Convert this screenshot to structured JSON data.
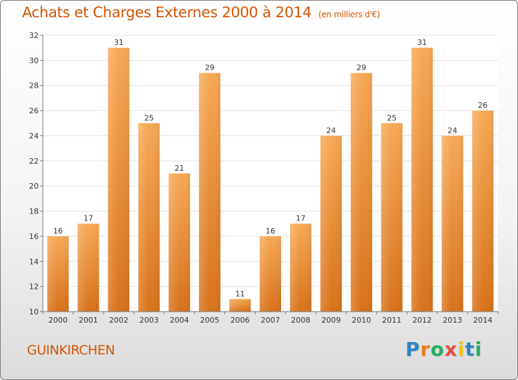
{
  "title": "Achats et Charges Externes 2000 à 2014",
  "subtitle": "(en milliers d'€)",
  "commune": "GUINKIRCHEN",
  "logo": {
    "text": "Proxiti",
    "letter_colors": [
      "#2e86c1",
      "#e67e22",
      "#27ae60",
      "#e74c3c",
      "#f1c40f",
      "#2e86c1",
      "#27ae60"
    ]
  },
  "colors": {
    "title": "#d35400",
    "bar_light": "#f7a956",
    "bar_dark": "#d8721a",
    "grid": "#e3e3e3",
    "axis": "#777777"
  },
  "chart_data": {
    "type": "bar",
    "title": "Achats et Charges Externes 2000 à 2014",
    "subtitle": "(en milliers d'€)",
    "categories": [
      "2000",
      "2001",
      "2002",
      "2003",
      "2004",
      "2005",
      "2006",
      "2007",
      "2008",
      "2009",
      "2010",
      "2011",
      "2012",
      "2013",
      "2014"
    ],
    "values": [
      16,
      17,
      31,
      25,
      21,
      29,
      11,
      16,
      17,
      24,
      29,
      25,
      31,
      24,
      26
    ],
    "data_labels": [
      "16",
      "17",
      "31",
      "25",
      "21",
      "29",
      "11",
      "16",
      "17",
      "24",
      "29",
      "25",
      "31",
      "24",
      "26"
    ],
    "ylim": [
      10,
      32
    ],
    "yticks": [
      10,
      12,
      14,
      16,
      18,
      20,
      22,
      24,
      26,
      28,
      30,
      32
    ],
    "xlabel": "",
    "ylabel": "",
    "grid": true,
    "legend": false
  }
}
